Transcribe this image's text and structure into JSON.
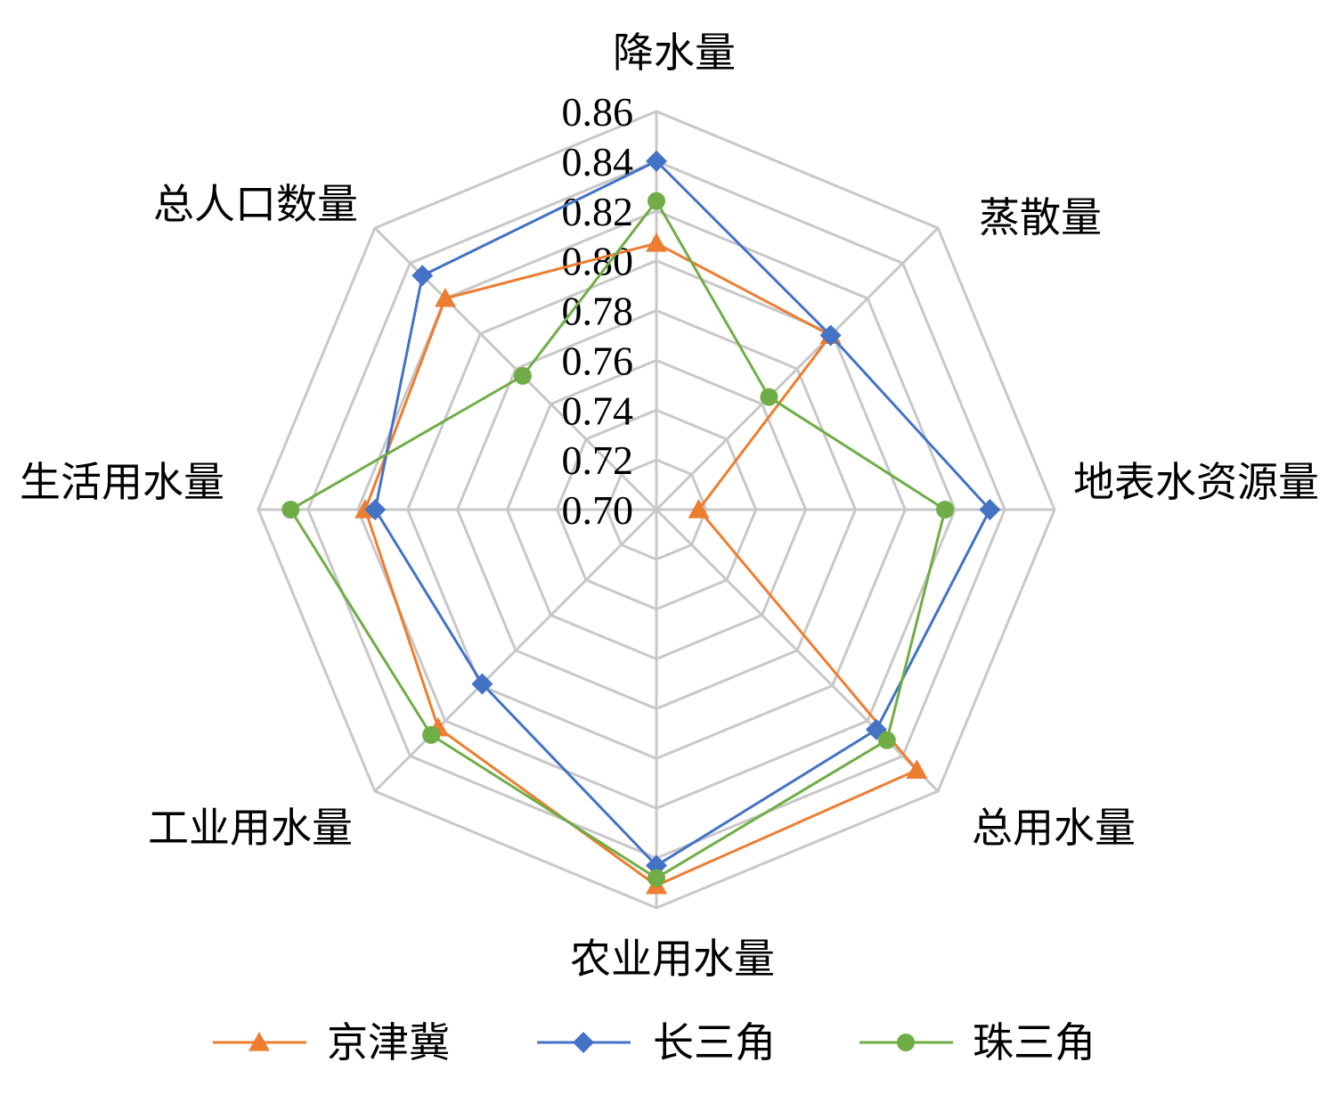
{
  "chart_data": {
    "type": "radar",
    "title": "",
    "axes": [
      "降水量",
      "蒸散量",
      "地表水资源量",
      "总用水量",
      "农业用水量",
      "工业用水量",
      "生活用水量",
      "总人口数量"
    ],
    "rlim": [
      0.7,
      0.86
    ],
    "ticks": [
      "0.70",
      "0.72",
      "0.74",
      "0.76",
      "0.78",
      "0.80",
      "0.82",
      "0.84",
      "0.86"
    ],
    "grid": true,
    "legend_position": "bottom",
    "series": [
      {
        "name": "京津冀",
        "color": "#ED7D31",
        "marker": "triangle",
        "values": [
          0.807,
          0.799,
          0.717,
          0.848,
          0.851,
          0.824,
          0.817,
          0.82
        ]
      },
      {
        "name": "长三角",
        "color": "#4472C4",
        "marker": "diamond",
        "values": [
          0.84,
          0.799,
          0.834,
          0.825,
          0.843,
          0.799,
          0.813,
          0.833
        ]
      },
      {
        "name": "珠三角",
        "color": "#70AD47",
        "marker": "circle",
        "values": [
          0.824,
          0.764,
          0.816,
          0.831,
          0.848,
          0.828,
          0.847,
          0.776
        ]
      }
    ]
  }
}
